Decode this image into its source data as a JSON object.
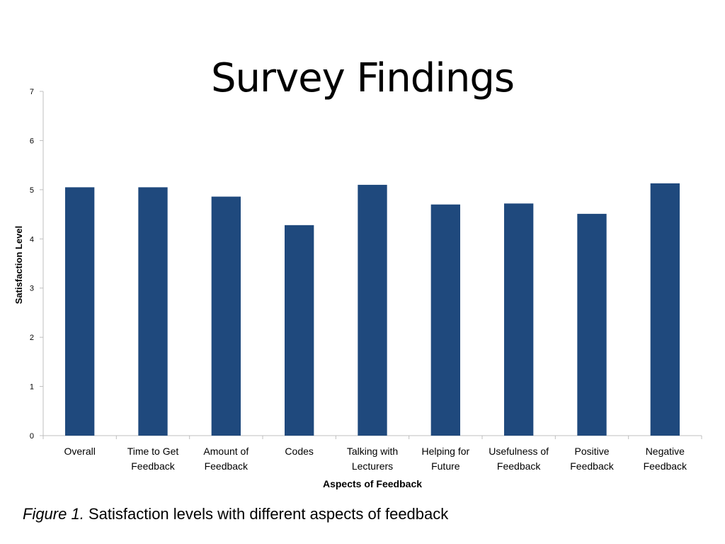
{
  "slide": {
    "title": "Survey Findings",
    "caption_label": "Figure 1.",
    "caption_text": " Satisfaction levels with different aspects of feedback"
  },
  "colors": {
    "bar": "#1F497D",
    "axis": "#BFBFBF"
  },
  "chart_data": {
    "type": "bar",
    "title": "Survey Findings",
    "xlabel": "Aspects of Feedback",
    "ylabel": "Satisfaction Level",
    "ylim": [
      0,
      7
    ],
    "yticks": [
      0,
      1,
      2,
      3,
      4,
      5,
      6,
      7
    ],
    "grid": false,
    "categories": [
      [
        "Overall"
      ],
      [
        "Time to Get",
        "Feedback"
      ],
      [
        "Amount of",
        "Feedback"
      ],
      [
        "Codes"
      ],
      [
        "Talking with",
        "Lecturers"
      ],
      [
        "Helping for",
        "Future"
      ],
      [
        "Usefulness of",
        "Feedback"
      ],
      [
        "Positive",
        "Feedback"
      ],
      [
        "Negative",
        "Feedback"
      ]
    ],
    "values": [
      5.05,
      5.05,
      4.86,
      4.28,
      5.1,
      4.7,
      4.72,
      4.51,
      5.13
    ]
  }
}
